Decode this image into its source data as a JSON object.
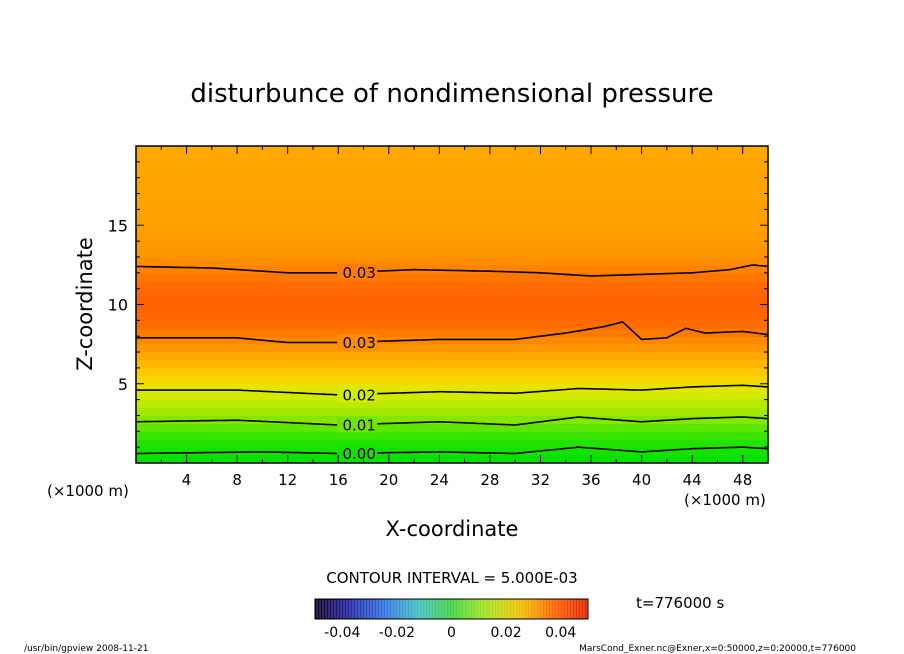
{
  "chart_data": {
    "type": "contour",
    "title": "disturbunce of nondimensional pressure",
    "xlabel": "X-coordinate",
    "ylabel": "Z-coordinate",
    "x_unit_left": "(×1000 m)",
    "x_unit_right": "(×1000 m)",
    "xlim": [
      0,
      50
    ],
    "ylim": [
      0,
      20
    ],
    "x_ticks": [
      4,
      8,
      12,
      16,
      20,
      24,
      28,
      32,
      36,
      40,
      44,
      48
    ],
    "y_ticks": [
      5,
      10,
      15
    ],
    "contour_lines": [
      {
        "label": "0.00",
        "z": [
          [
            0,
            0.6
          ],
          [
            10,
            0.7
          ],
          [
            16,
            0.6
          ],
          [
            24,
            0.7
          ],
          [
            30,
            0.6
          ],
          [
            35,
            1.0
          ],
          [
            40,
            0.7
          ],
          [
            44,
            0.9
          ],
          [
            48,
            1.0
          ],
          [
            50,
            0.9
          ]
        ]
      },
      {
        "label": "0.01",
        "z": [
          [
            0,
            2.6
          ],
          [
            8,
            2.7
          ],
          [
            16,
            2.4
          ],
          [
            24,
            2.6
          ],
          [
            30,
            2.4
          ],
          [
            35,
            2.9
          ],
          [
            40,
            2.6
          ],
          [
            44,
            2.8
          ],
          [
            48,
            2.9
          ],
          [
            50,
            2.8
          ]
        ]
      },
      {
        "label": "0.02",
        "z": [
          [
            0,
            4.6
          ],
          [
            8,
            4.6
          ],
          [
            16,
            4.3
          ],
          [
            24,
            4.5
          ],
          [
            30,
            4.4
          ],
          [
            35,
            4.7
          ],
          [
            40,
            4.6
          ],
          [
            44,
            4.8
          ],
          [
            48,
            4.9
          ],
          [
            50,
            4.8
          ]
        ]
      },
      {
        "label": "0.03",
        "z": [
          [
            0,
            7.9
          ],
          [
            8,
            7.9
          ],
          [
            12,
            7.6
          ],
          [
            16,
            7.6
          ],
          [
            24,
            7.8
          ],
          [
            30,
            7.8
          ],
          [
            34,
            8.2
          ],
          [
            37,
            8.6
          ],
          [
            38.5,
            8.9
          ],
          [
            40,
            7.8
          ],
          [
            42,
            7.9
          ],
          [
            43.5,
            8.5
          ],
          [
            45,
            8.2
          ],
          [
            48,
            8.3
          ],
          [
            50,
            8.1
          ]
        ]
      },
      {
        "label": "0.03",
        "z": [
          [
            0,
            12.4
          ],
          [
            6,
            12.3
          ],
          [
            12,
            12.0
          ],
          [
            16,
            12.0
          ],
          [
            22,
            12.2
          ],
          [
            28,
            12.1
          ],
          [
            32,
            12.0
          ],
          [
            36,
            11.8
          ],
          [
            40,
            11.9
          ],
          [
            44,
            12.0
          ],
          [
            47,
            12.2
          ],
          [
            48.8,
            12.5
          ],
          [
            50,
            12.4
          ]
        ]
      }
    ],
    "contour_interval_text": "CONTOUR INTERVAL = 5.000E-03",
    "time_label": "t=776000 s",
    "colorbar_ticks": [
      "-0.04",
      "-0.02",
      "0",
      "0.02",
      "0.04"
    ],
    "colorbar_range": [
      -0.05,
      0.05
    ],
    "colors": {
      "top": "#ffa500",
      "mid_max": "#ff6000",
      "bottom": "#00e000"
    }
  },
  "footer": {
    "left": "/usr/bin/gpview   2008-11-21",
    "right": "MarsCond_Exner.nc@Exner,x=0:50000,z=0:20000,t=776000"
  }
}
